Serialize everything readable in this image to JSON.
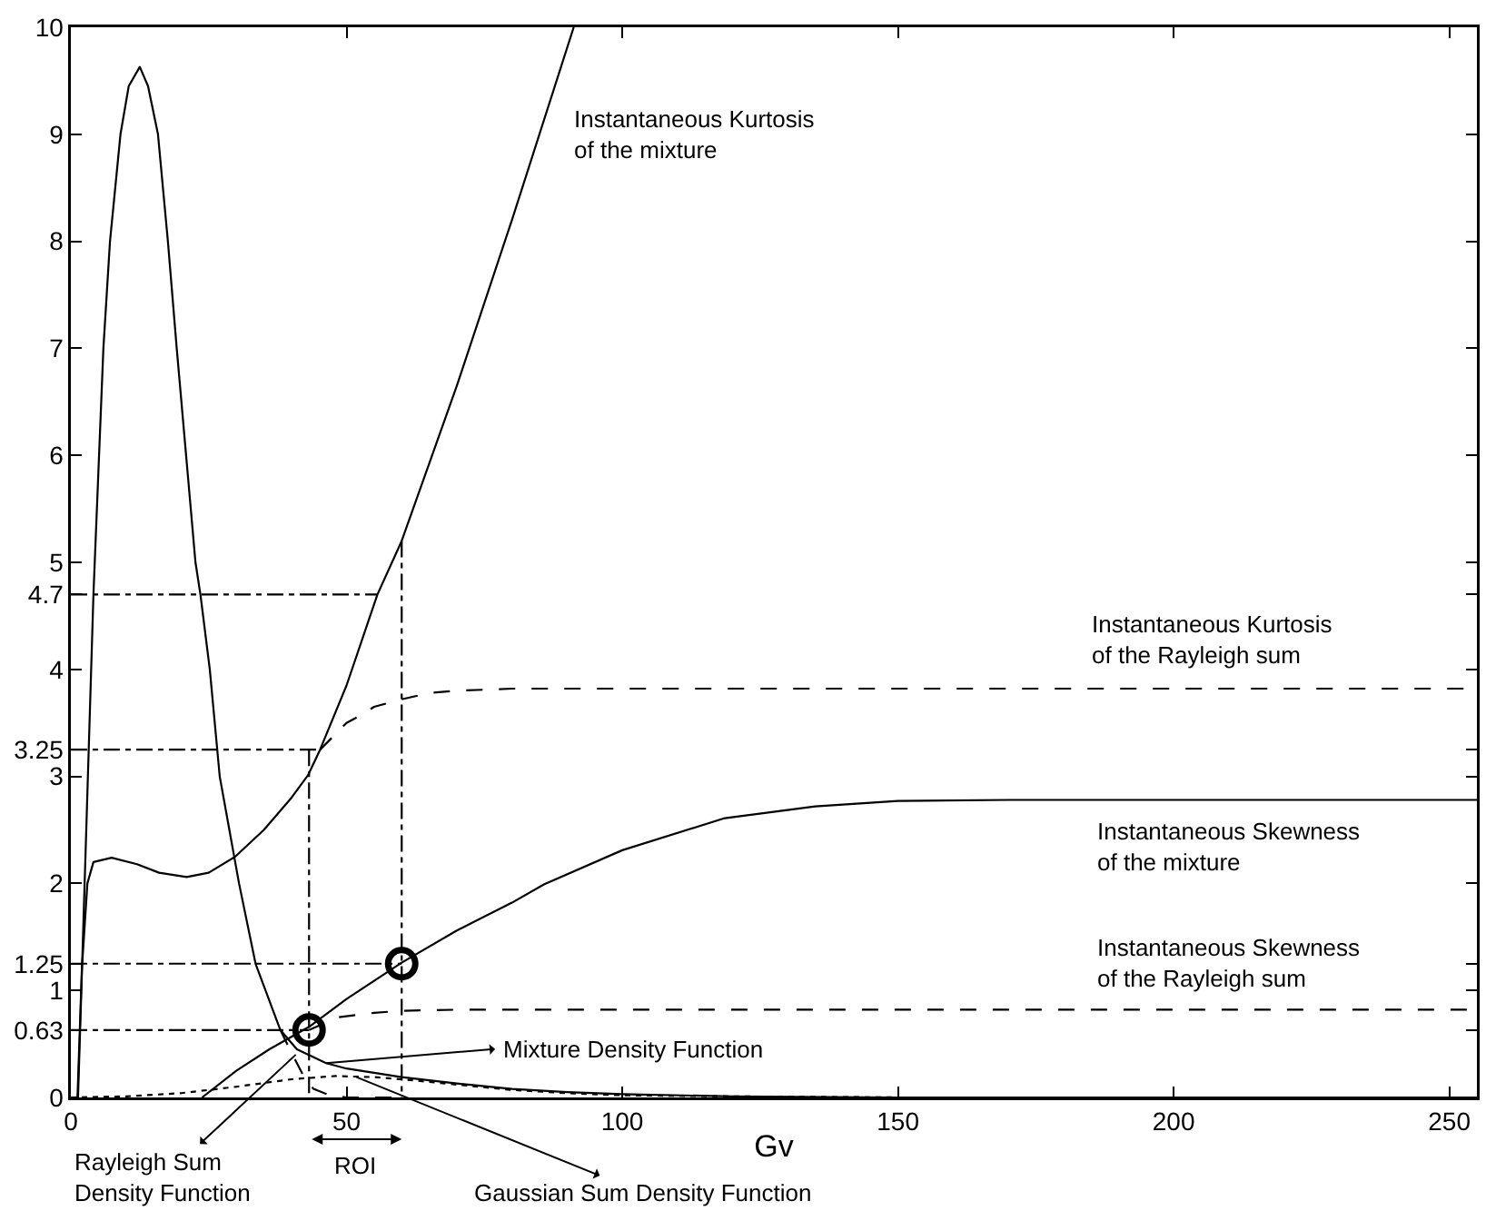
{
  "chart_data": {
    "type": "line",
    "xlabel": "Gv",
    "xlim": [
      0,
      255
    ],
    "ylim": [
      0,
      10
    ],
    "xticks": [
      0,
      50,
      100,
      150,
      200,
      250
    ],
    "yticks": [
      0,
      0.63,
      1,
      1.25,
      2,
      3,
      3.25,
      4,
      4.7,
      5,
      6,
      7,
      8,
      9,
      10
    ],
    "grid": false,
    "series": [
      {
        "color": "#000000",
        "line_style": "solid",
        "x": [
          0,
          1.3,
          2.5,
          4.1,
          5.9,
          7.1,
          9,
          10.5,
          12.5,
          14,
          15.8,
          17.6,
          19.2,
          20.9,
          22.6,
          23.5,
          25.2,
          27,
          30.5,
          33.5,
          35.3,
          38,
          41,
          46.3,
          50,
          60,
          70,
          80,
          90,
          100,
          120,
          150,
          255
        ],
        "values": [
          0,
          0,
          2,
          4.7,
          7,
          8,
          9,
          9.45,
          9.63,
          9.45,
          9,
          8,
          7,
          6,
          5,
          4.7,
          4,
          3,
          2,
          1.25,
          1,
          0.63,
          0.45,
          0.32,
          0.27,
          0.19,
          0.13,
          0.08,
          0.05,
          0.03,
          0.01,
          0,
          0
        ]
      },
      {
        "color": "#000000",
        "line_style": "dashed",
        "x": [
          38,
          40,
          42,
          44,
          47,
          50,
          60
        ],
        "values": [
          0.63,
          0.42,
          0.22,
          0.08,
          0.02,
          0,
          0
        ]
      },
      {
        "color": "#000000",
        "line_style": "dotted",
        "x": [
          0,
          10,
          20,
          30,
          40,
          48,
          55,
          60,
          70,
          80,
          90,
          100,
          120,
          150,
          255
        ],
        "values": [
          0,
          0.01,
          0.04,
          0.1,
          0.17,
          0.2,
          0.19,
          0.17,
          0.12,
          0.07,
          0.04,
          0.02,
          0.01,
          0,
          0
        ]
      },
      {
        "color": "#000000",
        "line_style": "solid",
        "x": [
          1.2,
          2,
          3,
          4.1,
          7.4,
          12,
          16,
          21,
          25,
          29.8,
          35,
          40,
          43,
          45.2,
          50,
          55.6,
          60,
          70,
          80,
          91.2
        ],
        "values": [
          0,
          1.2,
          2,
          2.2,
          2.24,
          2.18,
          2.1,
          2.06,
          2.1,
          2.25,
          2.5,
          2.8,
          3.01,
          3.25,
          3.85,
          4.7,
          5.2,
          6.65,
          8.2,
          10
        ]
      },
      {
        "color": "#000000",
        "line_style": "dashed",
        "x": [
          45.2,
          50,
          52.9,
          55,
          60,
          65,
          70,
          80,
          255
        ],
        "values": [
          3.25,
          3.5,
          3.58,
          3.65,
          3.72,
          3.78,
          3.8,
          3.82,
          3.82
        ]
      },
      {
        "color": "#000000",
        "line_style": "solid",
        "x": [
          23.8,
          30,
          36,
          43.2,
          50,
          60,
          70,
          80,
          85.8,
          100,
          118.6,
          135,
          150,
          170,
          255
        ],
        "values": [
          0,
          0.25,
          0.45,
          0.66,
          0.92,
          1.26,
          1.56,
          1.82,
          1.99,
          2.31,
          2.61,
          2.72,
          2.77,
          2.78,
          2.78
        ]
      },
      {
        "color": "#000000",
        "line_style": "dashed",
        "x": [
          43.2,
          48.5,
          55,
          60,
          70,
          255
        ],
        "values": [
          0.63,
          0.75,
          0.79,
          0.81,
          0.82,
          0.82
        ]
      },
      {
        "color": "#000000",
        "line_style": "dashdot",
        "x": [
          0,
          55.6
        ],
        "values": [
          4.7,
          4.7
        ]
      },
      {
        "color": "#000000",
        "line_style": "dashdot",
        "x": [
          0,
          45.2
        ],
        "values": [
          3.25,
          3.25
        ]
      },
      {
        "color": "#000000",
        "line_style": "dashdot",
        "x": [
          0,
          60
        ],
        "values": [
          1.25,
          1.25
        ]
      },
      {
        "color": "#000000",
        "line_style": "dashdot",
        "x": [
          0,
          43.2
        ],
        "values": [
          0.63,
          0.63
        ]
      },
      {
        "color": "#000000",
        "line_style": "dashdot",
        "x": [
          43.2,
          43.2
        ],
        "values": [
          3.25,
          0
        ]
      },
      {
        "color": "#000000",
        "line_style": "dashdot",
        "x": [
          60,
          60
        ],
        "values": [
          5.2,
          0
        ]
      },
      {
        "type": "scatter",
        "color": "#000000",
        "marker": "circle",
        "x": [
          43.2,
          60
        ],
        "values": [
          0.63,
          1.25
        ]
      }
    ],
    "annotations": [
      "Instantaneous Kurtosis\nof the mixture",
      "Instantaneous Kurtosis\nof the Rayleigh sum",
      "Instantaneous Skewness\nof the mixture",
      "Instantaneous Skewness\nof the Rayleigh sum",
      {
        "text": "Mixture Density Function",
        "x": 46.3,
        "y": 0.32
      },
      {
        "text": "Rayleigh Sum\nDensity Function",
        "x": 40.8,
        "y": 0.4
      },
      {
        "text": "Gaussian Sum Density Function",
        "x": 51.8,
        "y": 0.19
      },
      {
        "text": "ROI",
        "x": 51.6,
        "y": 0
      }
    ]
  }
}
